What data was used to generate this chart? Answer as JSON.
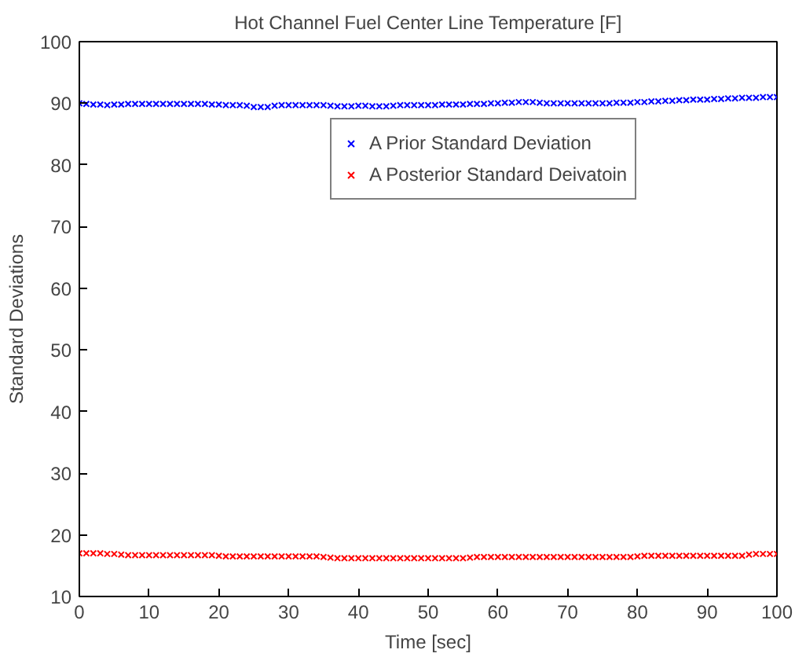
{
  "chart_data": {
    "type": "scatter",
    "title": "Hot Channel Fuel Center Line Temperature [F]",
    "xlabel": "Time [sec]",
    "ylabel": "Standard Deviations",
    "x": [
      0,
      1,
      2,
      3,
      4,
      5,
      6,
      7,
      8,
      9,
      10,
      11,
      12,
      13,
      14,
      15,
      16,
      17,
      18,
      19,
      20,
      21,
      22,
      23,
      24,
      25,
      26,
      27,
      28,
      29,
      30,
      31,
      32,
      33,
      34,
      35,
      36,
      37,
      38,
      39,
      40,
      41,
      42,
      43,
      44,
      45,
      46,
      47,
      48,
      49,
      50,
      51,
      52,
      53,
      54,
      55,
      56,
      57,
      58,
      59,
      60,
      61,
      62,
      63,
      64,
      65,
      66,
      67,
      68,
      69,
      70,
      71,
      72,
      73,
      74,
      75,
      76,
      77,
      78,
      79,
      80,
      81,
      82,
      83,
      84,
      85,
      86,
      87,
      88,
      89,
      90,
      91,
      92,
      93,
      94,
      95,
      96,
      97,
      98,
      99,
      100
    ],
    "series": [
      {
        "name": "A Prior Standard Deviation",
        "color": "#0000ff",
        "values": [
          90.0,
          89.9,
          89.8,
          89.8,
          89.7,
          89.8,
          89.8,
          89.9,
          89.9,
          89.9,
          89.9,
          89.9,
          89.9,
          89.9,
          89.9,
          89.9,
          89.9,
          89.9,
          89.9,
          89.8,
          89.8,
          89.7,
          89.7,
          89.7,
          89.6,
          89.4,
          89.4,
          89.4,
          89.6,
          89.7,
          89.7,
          89.7,
          89.7,
          89.7,
          89.7,
          89.7,
          89.6,
          89.5,
          89.5,
          89.5,
          89.6,
          89.6,
          89.5,
          89.5,
          89.5,
          89.6,
          89.7,
          89.7,
          89.7,
          89.7,
          89.7,
          89.7,
          89.8,
          89.8,
          89.8,
          89.8,
          89.9,
          89.9,
          89.9,
          90.0,
          90.0,
          90.1,
          90.1,
          90.2,
          90.2,
          90.2,
          90.1,
          90.0,
          90.0,
          90.0,
          90.0,
          90.0,
          90.0,
          90.0,
          90.0,
          90.0,
          90.0,
          90.1,
          90.1,
          90.1,
          90.2,
          90.2,
          90.3,
          90.3,
          90.4,
          90.4,
          90.5,
          90.5,
          90.6,
          90.6,
          90.6,
          90.7,
          90.7,
          90.8,
          90.8,
          90.9,
          90.9,
          90.9,
          91.0,
          91.0,
          91.0
        ]
      },
      {
        "name": "A Posterior Standard Deivatoin",
        "color": "#ff0000",
        "values": [
          17.0,
          17.0,
          17.0,
          17.0,
          16.9,
          16.9,
          16.8,
          16.7,
          16.7,
          16.7,
          16.7,
          16.7,
          16.7,
          16.7,
          16.7,
          16.7,
          16.7,
          16.7,
          16.7,
          16.7,
          16.6,
          16.5,
          16.5,
          16.5,
          16.5,
          16.5,
          16.5,
          16.5,
          16.5,
          16.5,
          16.5,
          16.5,
          16.5,
          16.5,
          16.5,
          16.4,
          16.3,
          16.2,
          16.2,
          16.2,
          16.2,
          16.2,
          16.2,
          16.2,
          16.2,
          16.2,
          16.2,
          16.2,
          16.2,
          16.2,
          16.2,
          16.2,
          16.2,
          16.2,
          16.2,
          16.2,
          16.3,
          16.4,
          16.4,
          16.4,
          16.4,
          16.4,
          16.4,
          16.4,
          16.4,
          16.4,
          16.4,
          16.4,
          16.4,
          16.4,
          16.4,
          16.4,
          16.4,
          16.4,
          16.4,
          16.4,
          16.4,
          16.4,
          16.4,
          16.4,
          16.5,
          16.6,
          16.6,
          16.6,
          16.6,
          16.6,
          16.6,
          16.6,
          16.6,
          16.6,
          16.6,
          16.6,
          16.6,
          16.6,
          16.6,
          16.6,
          16.8,
          16.9,
          16.9,
          16.9,
          16.9
        ]
      }
    ],
    "xlim": [
      0,
      100
    ],
    "ylim": [
      10,
      100
    ],
    "xticks": [
      0,
      10,
      20,
      30,
      40,
      50,
      60,
      70,
      80,
      90,
      100
    ],
    "yticks": [
      10,
      20,
      30,
      40,
      50,
      60,
      70,
      80,
      90,
      100
    ],
    "marker": "cross",
    "legend": "top right",
    "grid": false
  }
}
